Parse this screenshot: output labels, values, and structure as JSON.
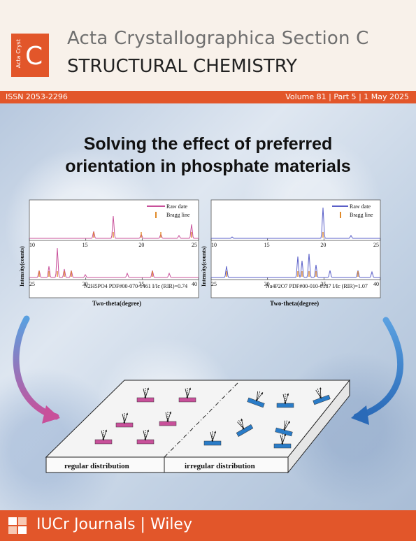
{
  "header": {
    "logo_small": "Acta Cryst",
    "logo_letter": "C",
    "title": "Acta Crystallographica Section C",
    "subtitle": "STRUCTURAL CHEMISTRY"
  },
  "issue_bar": {
    "issn": "ISSN 2053-2296",
    "volume": "Volume 81",
    "part": "Part 5",
    "date": "1 May 2025"
  },
  "cover": {
    "title_line1": "Solving the effect of preferred",
    "title_line2": "orientation in phosphate materials"
  },
  "chart_data": [
    {
      "type": "line",
      "xlabel": "Two-theta(degree)",
      "ylabel": "Intensity(counts)",
      "legend": [
        "Raw date",
        "Bragg line"
      ],
      "top_panel": {
        "xlim": [
          10,
          25
        ],
        "ticks": [
          "10",
          "15",
          "20",
          "25"
        ]
      },
      "bottom_panel": {
        "xlim": [
          25,
          40
        ],
        "ticks": [
          "25",
          "30",
          "35",
          "40"
        ]
      },
      "annotation": "N2H5PO4  PDF#00-070-1461  I/Ic (RIR)=0.74"
    },
    {
      "type": "line",
      "xlabel": "Two-theta(degree)",
      "ylabel": "Intensity(counts)",
      "legend": [
        "Raw date",
        "Bragg line"
      ],
      "top_panel": {
        "xlim": [
          10,
          25
        ],
        "ticks": [
          "10",
          "15",
          "20",
          "25"
        ]
      },
      "bottom_panel": {
        "xlim": [
          25,
          40
        ],
        "ticks": [
          "25",
          "30",
          "35",
          "40"
        ]
      },
      "annotation": "Na4P2O7  PDF#00-010-0187  I/Ic (RIR)=1.07"
    }
  ],
  "diagram": {
    "left_label": "regular distribution",
    "right_label": "irregular distribution"
  },
  "footer": {
    "text": "IUCr Journals | Wiley"
  },
  "colors": {
    "brand": "#e2562a",
    "raw_left": "#c8509a",
    "raw_right": "#5a5fc8",
    "bragg": "#e08a2a",
    "crystal_left": "#c8509a",
    "crystal_right": "#2a7cc8"
  }
}
